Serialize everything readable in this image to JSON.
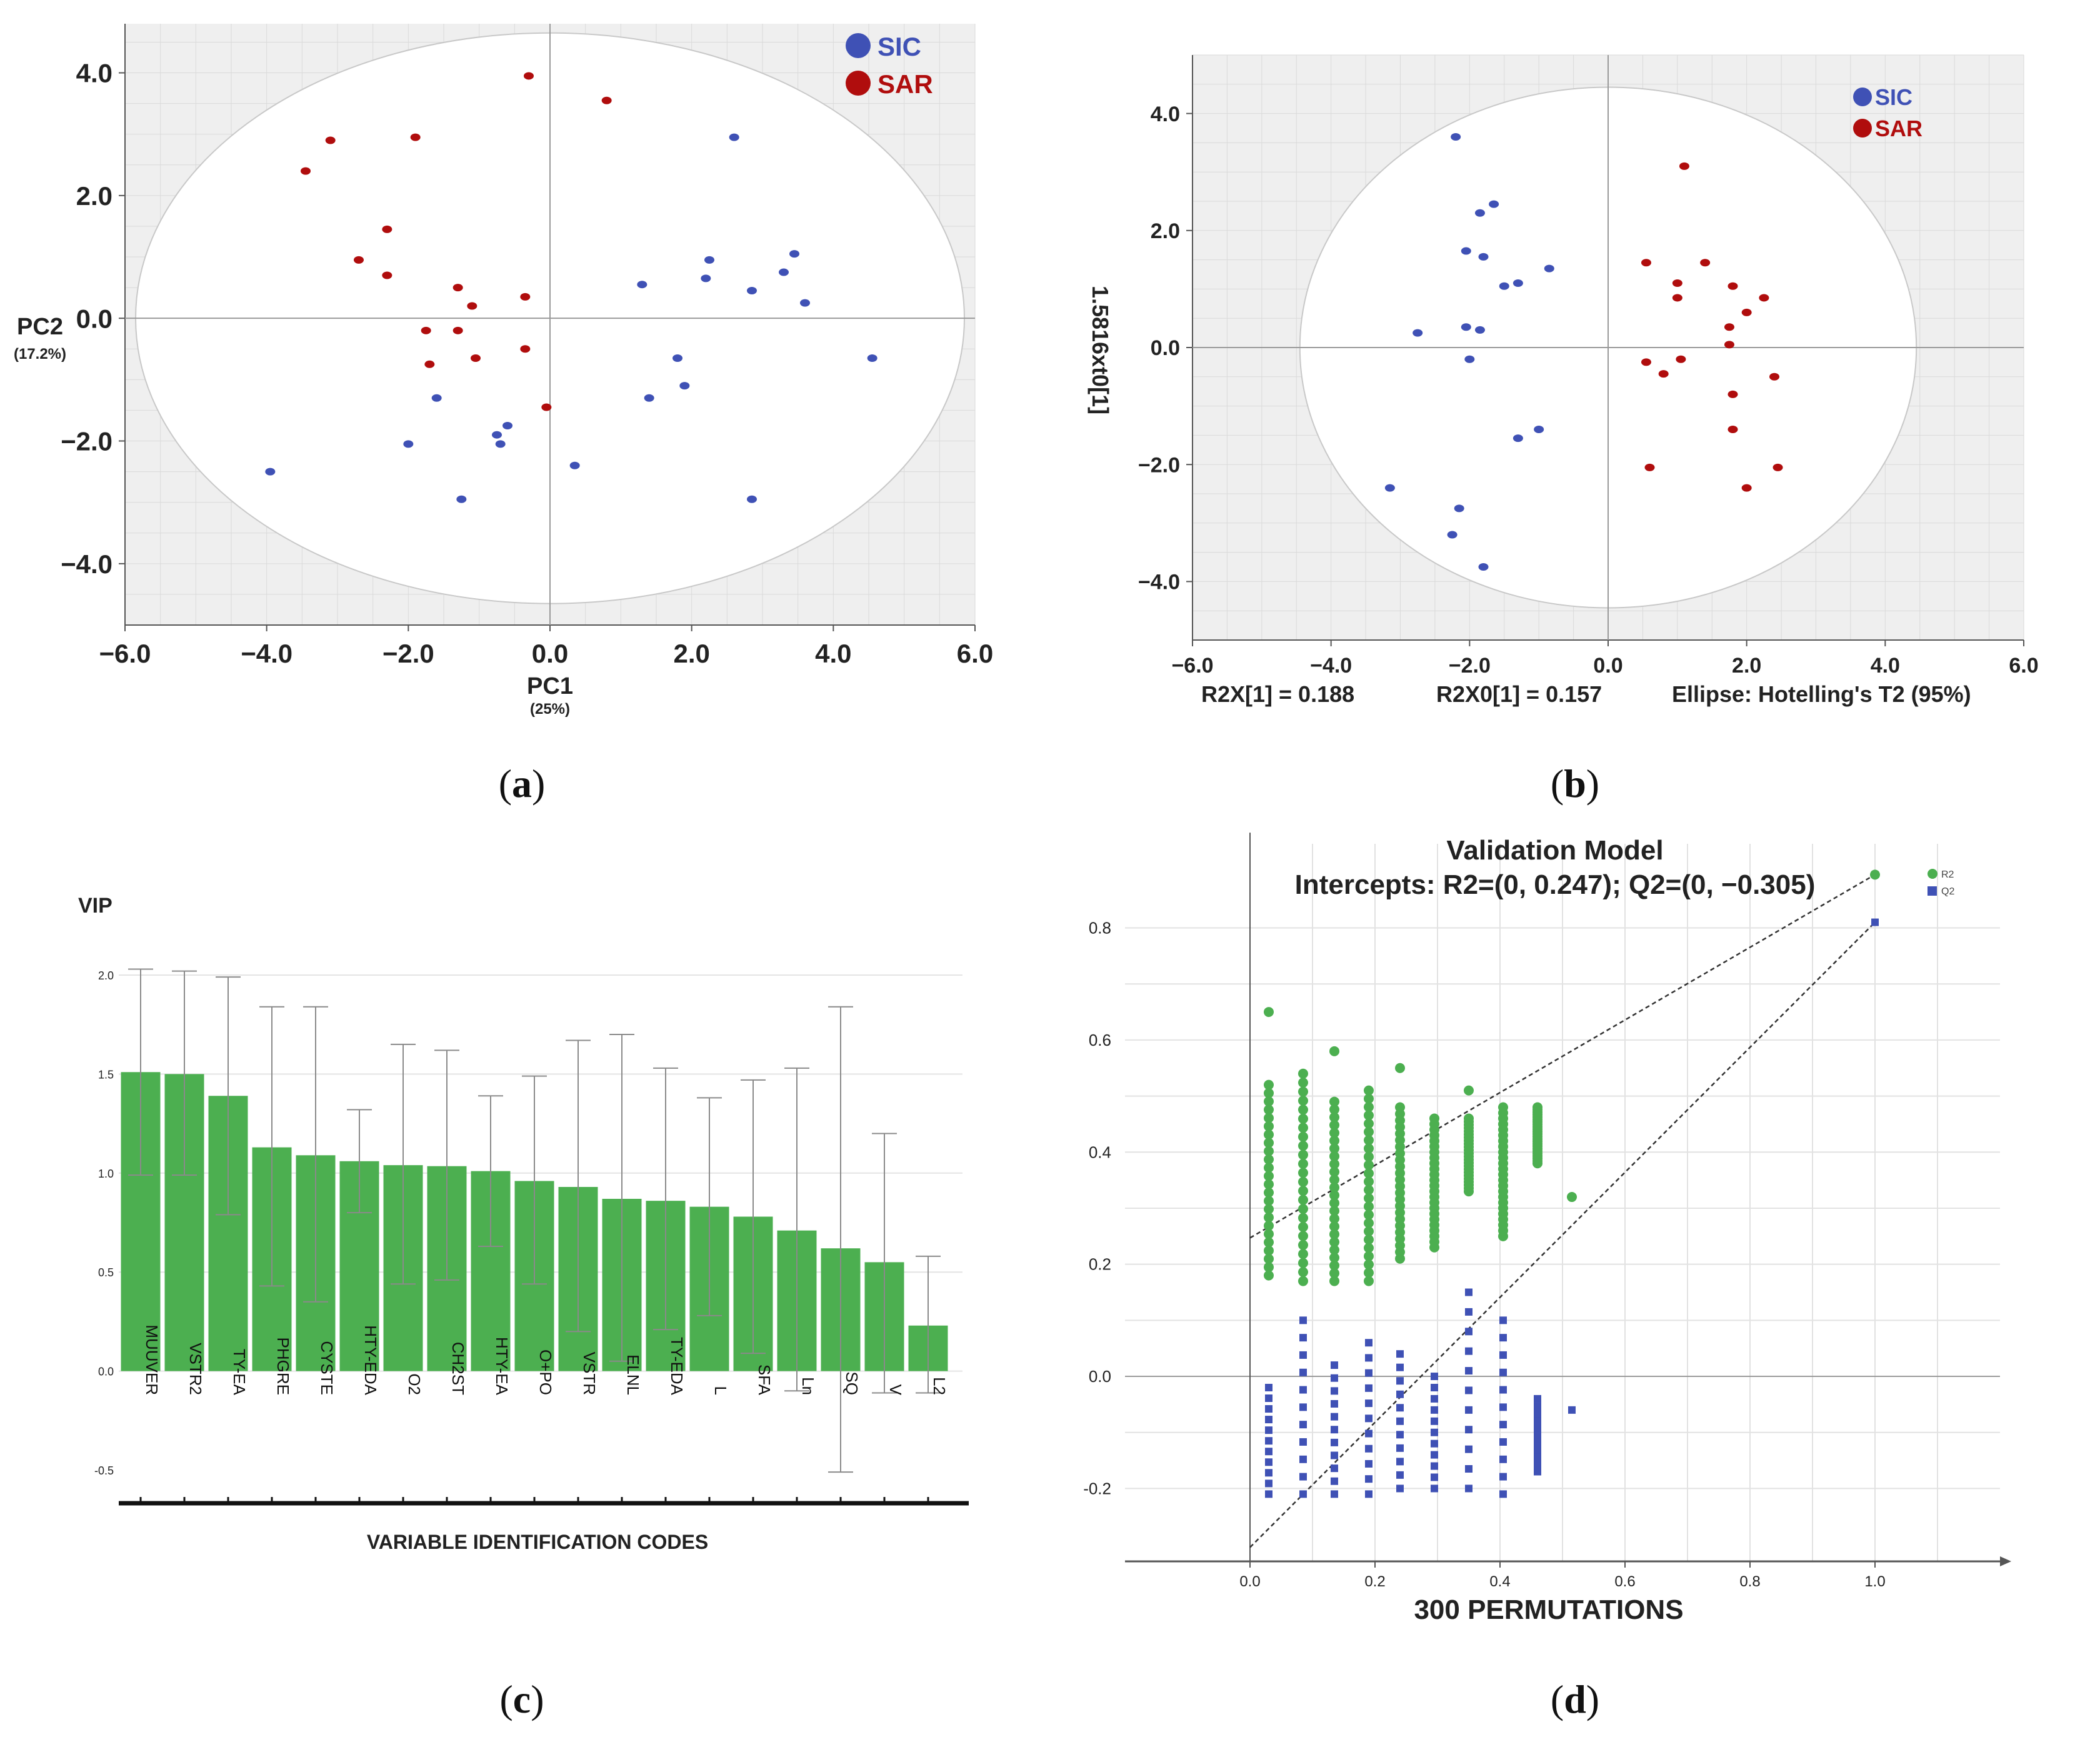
{
  "colors": {
    "sic": "#3f51b5",
    "sar": "#b00d0d",
    "bar": "#4caf50",
    "r2": "#4caf50",
    "q2": "#3f51b5",
    "panel_bg": "#efefef"
  },
  "chart_data": [
    {
      "panel": "(a)",
      "type": "scatter",
      "xlabel": "PC1",
      "xlabel_sub": "(25%)",
      "ylabel": "PC2",
      "ylabel_sub": "(17.2%)",
      "xlim": [
        -6.0,
        6.0
      ],
      "ylim": [
        -5.0,
        4.8
      ],
      "xticks": [
        "−6.0",
        "−4.0",
        "−2.0",
        "0.0",
        "2.0",
        "4.0",
        "6.0"
      ],
      "yticks": [
        "4.0",
        "2.0",
        "0.0",
        "−2.0",
        "−4.0"
      ],
      "legend": [
        "SIC",
        "SAR"
      ],
      "ellipse": {
        "rx": 5.85,
        "ry": 4.65
      },
      "series": [
        {
          "name": "SIC",
          "points": [
            [
              2.6,
              2.95
            ],
            [
              3.45,
              1.05
            ],
            [
              3.3,
              0.75
            ],
            [
              2.25,
              0.95
            ],
            [
              2.2,
              0.65
            ],
            [
              2.85,
              0.45
            ],
            [
              3.6,
              0.25
            ],
            [
              1.3,
              0.55
            ],
            [
              4.55,
              -0.65
            ],
            [
              1.8,
              -0.65
            ],
            [
              1.9,
              -1.1
            ],
            [
              1.4,
              -1.3
            ],
            [
              2.85,
              -2.95
            ],
            [
              0.35,
              -2.4
            ],
            [
              -1.6,
              -1.3
            ],
            [
              -2.0,
              -2.05
            ],
            [
              -0.75,
              -1.9
            ],
            [
              -0.6,
              -1.75
            ],
            [
              -0.7,
              -2.05
            ],
            [
              -1.25,
              -2.95
            ],
            [
              -3.95,
              -2.5
            ]
          ]
        },
        {
          "name": "SAR",
          "points": [
            [
              -0.3,
              3.95
            ],
            [
              0.8,
              3.55
            ],
            [
              -3.1,
              2.9
            ],
            [
              -1.9,
              2.95
            ],
            [
              -3.45,
              2.4
            ],
            [
              -2.3,
              1.45
            ],
            [
              -2.7,
              0.95
            ],
            [
              -2.3,
              0.7
            ],
            [
              -1.3,
              0.5
            ],
            [
              -1.1,
              0.2
            ],
            [
              -0.35,
              0.35
            ],
            [
              -1.3,
              -0.2
            ],
            [
              -1.75,
              -0.2
            ],
            [
              -1.7,
              -0.75
            ],
            [
              -1.05,
              -0.65
            ],
            [
              -0.35,
              -0.5
            ],
            [
              -0.05,
              -1.45
            ]
          ]
        }
      ]
    },
    {
      "panel": "(b)",
      "type": "scatter",
      "ylabel": "1.5816xt0[1]",
      "xlim": [
        -6.0,
        6.0
      ],
      "ylim": [
        -5.0,
        5.0
      ],
      "xticks": [
        "−6.0",
        "−4.0",
        "−2.0",
        "0.0",
        "2.0",
        "4.0",
        "6.0"
      ],
      "yticks": [
        "4.0",
        "2.0",
        "0.0",
        "−2.0",
        "−4.0"
      ],
      "legend": [
        "SIC",
        "SAR"
      ],
      "ellipse": {
        "rx": 4.45,
        "ry": 4.45
      },
      "footer": [
        "R2X[1] = 0.188",
        "R2X0[1] = 0.157",
        "Ellipse: Hotelling's T2 (95%)"
      ],
      "series": [
        {
          "name": "SIC",
          "points": [
            [
              -2.2,
              3.6
            ],
            [
              -1.65,
              2.45
            ],
            [
              -1.85,
              2.3
            ],
            [
              -2.05,
              1.65
            ],
            [
              -1.8,
              1.55
            ],
            [
              -0.85,
              1.35
            ],
            [
              -1.3,
              1.1
            ],
            [
              -1.5,
              1.05
            ],
            [
              -2.75,
              0.25
            ],
            [
              -2.05,
              0.35
            ],
            [
              -1.85,
              0.3
            ],
            [
              -2.0,
              -0.2
            ],
            [
              -1.0,
              -1.4
            ],
            [
              -1.3,
              -1.55
            ],
            [
              -3.15,
              -2.4
            ],
            [
              -2.15,
              -2.75
            ],
            [
              -2.25,
              -3.2
            ],
            [
              -1.8,
              -3.75
            ]
          ]
        },
        {
          "name": "SAR",
          "points": [
            [
              1.1,
              3.1
            ],
            [
              0.55,
              1.45
            ],
            [
              1.4,
              1.45
            ],
            [
              1.0,
              1.1
            ],
            [
              1.0,
              0.85
            ],
            [
              1.8,
              1.05
            ],
            [
              2.25,
              0.85
            ],
            [
              2.0,
              0.6
            ],
            [
              1.75,
              0.35
            ],
            [
              1.75,
              0.05
            ],
            [
              0.55,
              -0.25
            ],
            [
              0.8,
              -0.45
            ],
            [
              1.05,
              -0.2
            ],
            [
              2.4,
              -0.5
            ],
            [
              1.8,
              -0.8
            ],
            [
              1.8,
              -1.4
            ],
            [
              0.6,
              -2.05
            ],
            [
              2.45,
              -2.05
            ],
            [
              2.0,
              -2.4
            ]
          ]
        }
      ]
    },
    {
      "panel": "(c)",
      "type": "bar",
      "ylabel": "VIP",
      "xlabel": "VARIABLE IDENTIFICATION CODES",
      "ylim": [
        -0.5,
        2.0
      ],
      "yticks": [
        "2.0",
        "1.5",
        "1.0",
        "0.5",
        "0.0",
        "-0.5"
      ],
      "categories": [
        "MUUVER",
        "VSTR2",
        "TY-EA",
        "PHGRE",
        "CYSTE",
        "HTY-EDA",
        "O2",
        "CH2ST",
        "HTY-EA",
        "O+PO",
        "VSTR",
        "ELNL",
        "TY-EDA",
        "L",
        "SFA",
        "Ln",
        "SQ",
        "V",
        "L2"
      ],
      "values": [
        1.51,
        1.5,
        1.39,
        1.13,
        1.09,
        1.06,
        1.04,
        1.035,
        1.01,
        0.96,
        0.93,
        0.87,
        0.86,
        0.83,
        0.78,
        0.71,
        0.62,
        0.55,
        0.23
      ],
      "err_low": [
        0.99,
        0.99,
        0.79,
        0.43,
        0.35,
        0.8,
        0.44,
        0.46,
        0.63,
        0.44,
        0.2,
        0.05,
        0.21,
        0.28,
        0.09,
        -0.1,
        -0.51,
        -0.11,
        -0.11
      ],
      "err_high": [
        2.03,
        2.02,
        1.99,
        1.84,
        1.84,
        1.32,
        1.65,
        1.62,
        1.39,
        1.49,
        1.67,
        1.7,
        1.53,
        1.38,
        1.47,
        1.53,
        1.84,
        1.2,
        0.58
      ]
    },
    {
      "panel": "(d)",
      "type": "scatter",
      "title": "Validation Model",
      "subtitle": "Intercepts: R2=(0, 0.247); Q2=(0, −0.305)",
      "xlabel": "300 PERMUTATIONS",
      "xlim": [
        -0.2,
        1.2
      ],
      "ylim": [
        -0.33,
        0.95
      ],
      "xticks": [
        "0.0",
        "0.2",
        "0.4",
        "0.6",
        "0.8",
        "1.0"
      ],
      "yticks": [
        "0.8",
        "0.6",
        "0.4",
        "0.2",
        "0.0",
        "-0.2"
      ],
      "legend": [
        "R2",
        "Q2"
      ],
      "r2_line": [
        [
          0,
          0.247
        ],
        [
          1.0,
          0.895
        ]
      ],
      "q2_line": [
        [
          0,
          -0.305
        ],
        [
          1.0,
          0.81
        ]
      ],
      "r2_original": [
        1.0,
        0.895
      ],
      "q2_original": [
        1.0,
        0.81
      ],
      "r2_permutations": [
        {
          "x": 0.03,
          "min": 0.18,
          "max": 0.52,
          "top": 0.65
        },
        {
          "x": 0.085,
          "min": 0.17,
          "max": 0.54
        },
        {
          "x": 0.135,
          "min": 0.17,
          "max": 0.49,
          "top": 0.58
        },
        {
          "x": 0.19,
          "min": 0.17,
          "max": 0.51
        },
        {
          "x": 0.24,
          "min": 0.21,
          "max": 0.48,
          "top": 0.55
        },
        {
          "x": 0.295,
          "min": 0.23,
          "max": 0.46
        },
        {
          "x": 0.35,
          "min": 0.33,
          "max": 0.46,
          "top": 0.51
        },
        {
          "x": 0.405,
          "min": 0.25,
          "max": 0.48
        },
        {
          "x": 0.46,
          "min": 0.38,
          "max": 0.48
        },
        {
          "x": 0.515,
          "min": 0.32,
          "max": 0.32
        }
      ],
      "q2_permutations": [
        {
          "x": 0.03,
          "min": -0.21,
          "max": -0.02
        },
        {
          "x": 0.085,
          "min": -0.21,
          "max": 0.1
        },
        {
          "x": 0.135,
          "min": -0.21,
          "max": 0.02
        },
        {
          "x": 0.19,
          "min": -0.21,
          "max": 0.06
        },
        {
          "x": 0.24,
          "min": -0.2,
          "max": 0.04
        },
        {
          "x": 0.295,
          "min": -0.2,
          "max": 0.0
        },
        {
          "x": 0.35,
          "min": -0.2,
          "max": 0.15
        },
        {
          "x": 0.405,
          "min": -0.21,
          "max": 0.1
        },
        {
          "x": 0.46,
          "min": -0.17,
          "max": -0.04
        },
        {
          "x": 0.515,
          "min": -0.06,
          "max": -0.06
        }
      ]
    }
  ]
}
